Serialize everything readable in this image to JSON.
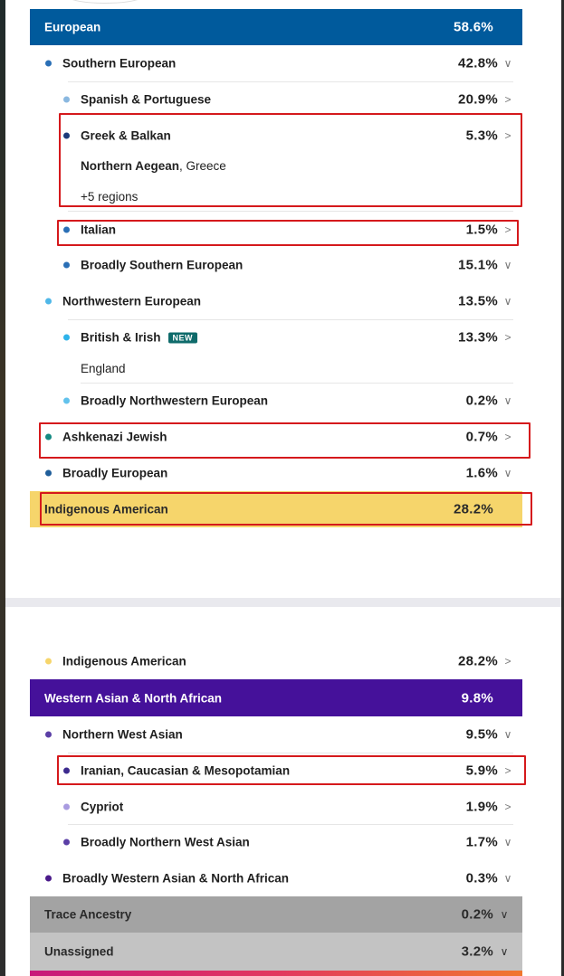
{
  "colors": {
    "european": "#005a9c",
    "indigenous_american": "#f6d56b",
    "western_asian_north_african": "#45119a",
    "trace": "#a3a3a3",
    "unassigned": "#c3c3c3",
    "highlight_box": "#d5191c",
    "new_badge": "#0f6b6b"
  },
  "panel1": {
    "european": {
      "label": "European",
      "pct": "58.6%"
    },
    "southern_european": {
      "label": "Southern European",
      "pct": "42.8%",
      "chevron": "chevron-down-icon"
    },
    "spanish_portuguese": {
      "label": "Spanish & Portuguese",
      "pct": "20.9%",
      "chevron": "chevron-right-icon"
    },
    "greek_balkan": {
      "label": "Greek & Balkan",
      "pct": "5.3%",
      "chevron": "chevron-right-icon",
      "region_bold": "Northern Aegean",
      "region_rest": ", Greece",
      "more_regions": "+5 regions"
    },
    "italian": {
      "label": "Italian",
      "pct": "1.5%",
      "chevron": "chevron-right-icon"
    },
    "broadly_southern": {
      "label": "Broadly Southern European",
      "pct": "15.1%",
      "chevron": "chevron-down-icon"
    },
    "northwestern": {
      "label": "Northwestern European",
      "pct": "13.5%",
      "chevron": "chevron-down-icon"
    },
    "british_irish": {
      "label": "British & Irish",
      "badge": "NEW",
      "pct": "13.3%",
      "chevron": "chevron-right-icon",
      "region": "England"
    },
    "broadly_northwestern": {
      "label": "Broadly Northwestern European",
      "pct": "0.2%",
      "chevron": "chevron-down-icon"
    },
    "ashkenazi": {
      "label": "Ashkenazi Jewish",
      "pct": "0.7%",
      "chevron": "chevron-right-icon"
    },
    "broadly_european": {
      "label": "Broadly European",
      "pct": "1.6%",
      "chevron": "chevron-down-icon"
    },
    "indigenous_american": {
      "label": "Indigenous American",
      "pct": "28.2%"
    }
  },
  "panel2": {
    "indigenous_american": {
      "label": "Indigenous American",
      "pct": "28.2%",
      "chevron": "chevron-right-icon"
    },
    "wana": {
      "label": "Western Asian & North African",
      "pct": "9.8%"
    },
    "northern_west_asian": {
      "label": "Northern West Asian",
      "pct": "9.5%",
      "chevron": "chevron-down-icon"
    },
    "iranian": {
      "label": "Iranian, Caucasian & Mesopotamian",
      "pct": "5.9%",
      "chevron": "chevron-right-icon"
    },
    "cypriot": {
      "label": "Cypriot",
      "pct": "1.9%",
      "chevron": "chevron-right-icon"
    },
    "broadly_nwa": {
      "label": "Broadly Northern West Asian",
      "pct": "1.7%",
      "chevron": "chevron-down-icon"
    },
    "broadly_wana": {
      "label": "Broadly Western Asian & North African",
      "pct": "0.3%",
      "chevron": "chevron-down-icon"
    },
    "trace": {
      "label": "Trace Ancestry",
      "pct": "0.2%",
      "chevron": "chevron-down-icon"
    },
    "unassigned": {
      "label": "Unassigned",
      "pct": "3.2%",
      "chevron": "chevron-down-icon"
    }
  }
}
